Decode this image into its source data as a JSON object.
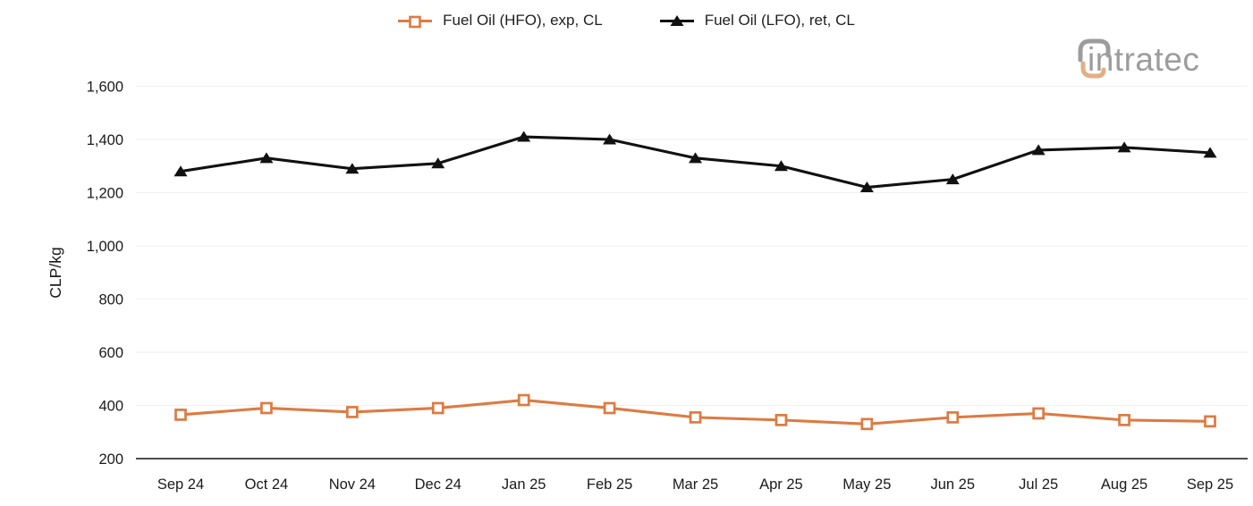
{
  "logo": {
    "text": "intratec",
    "gray_color": "#9c9c9c",
    "accent_color": "#e2ae85"
  },
  "legend": {
    "position": "top-center"
  },
  "chart_data": {
    "type": "line",
    "title": "",
    "xlabel": "",
    "ylabel": "CLP/kg",
    "categories": [
      "Sep 24",
      "Oct 24",
      "Nov 24",
      "Dec 24",
      "Jan 25",
      "Feb 25",
      "Mar 25",
      "Apr 25",
      "May 25",
      "Jun 25",
      "Jul 25",
      "Aug 25",
      "Sep 25"
    ],
    "series": [
      {
        "name": "Fuel Oil (HFO), exp, CL",
        "color": "#dc7b42",
        "marker": "open-square",
        "values": [
          365,
          390,
          375,
          390,
          420,
          390,
          355,
          345,
          330,
          355,
          370,
          345,
          340
        ]
      },
      {
        "name": "Fuel Oil (LFO), ret, CL",
        "color": "#111111",
        "marker": "filled-triangle",
        "values": [
          1280,
          1330,
          1290,
          1310,
          1410,
          1400,
          1330,
          1300,
          1220,
          1250,
          1360,
          1370,
          1350
        ]
      }
    ],
    "ylim": [
      200,
      1600
    ],
    "yticks": [
      {
        "value": 200,
        "label": "200"
      },
      {
        "value": 400,
        "label": "400"
      },
      {
        "value": 600,
        "label": "600"
      },
      {
        "value": 800,
        "label": "800"
      },
      {
        "value": 1000,
        "label": "1,000"
      },
      {
        "value": 1200,
        "label": "1,200"
      },
      {
        "value": 1400,
        "label": "1,400"
      },
      {
        "value": 1600,
        "label": "1,600"
      }
    ],
    "grid": true,
    "grid_color": "#f1f1f1",
    "axis_line_color": "#4d4d4d",
    "tick_label_color": "#1a1a1a",
    "legend_position": "top-center"
  }
}
